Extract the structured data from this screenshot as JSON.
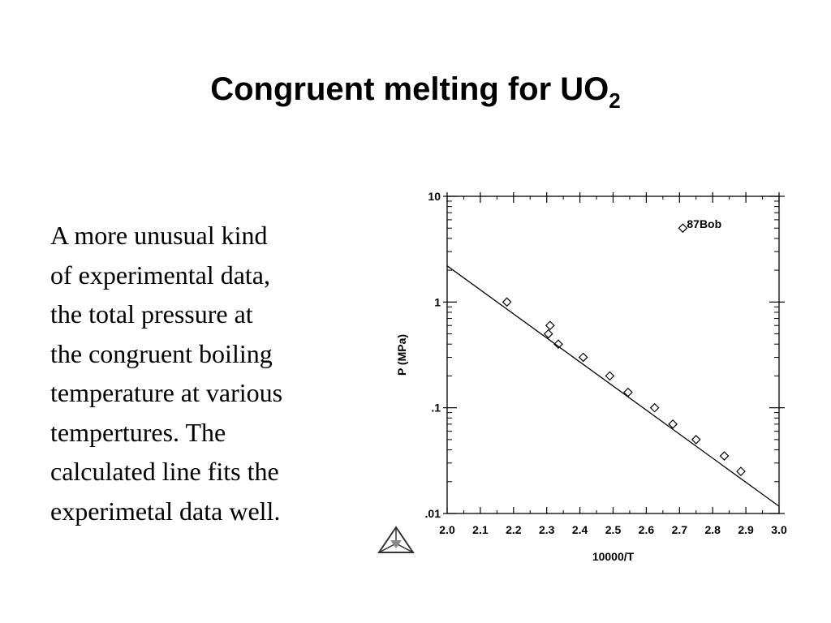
{
  "slide": {
    "title_main": "Congruent melting for UO",
    "title_subscript": "2",
    "body_lines": [
      "A more unusual kind",
      "of experimental data,",
      "the total pressure at",
      "the congruent boiling",
      "temperature at various",
      "tempertures.  The",
      "calculated line fits the",
      "experimetal data well."
    ]
  },
  "logo": {
    "icon": "thermo-calc-triangle-logo"
  },
  "chart_data": {
    "type": "scatter",
    "xlabel": "10000/T",
    "ylabel": "P (MPa)",
    "xlim": [
      2.0,
      3.0
    ],
    "ylim": [
      0.01,
      10
    ],
    "yscale": "log",
    "x_ticks": [
      2.0,
      2.1,
      2.2,
      2.3,
      2.4,
      2.5,
      2.6,
      2.7,
      2.8,
      2.9,
      3.0
    ],
    "x_tick_labels": [
      "2.0",
      "2.1",
      "2.2",
      "2.3",
      "2.4",
      "2.5",
      "2.6",
      "2.7",
      "2.8",
      "2.9",
      "3.0"
    ],
    "y_ticks": [
      0.01,
      0.1,
      1,
      10
    ],
    "y_tick_labels": [
      ".01",
      ".1",
      "1",
      "10"
    ],
    "grid": false,
    "legend": {
      "label": "87Bob",
      "marker": "diamond",
      "position": "top-right"
    },
    "series": [
      {
        "name": "87Bob",
        "kind": "points",
        "marker": "diamond",
        "points": [
          [
            2.18,
            1.0
          ],
          [
            2.31,
            0.6
          ],
          [
            2.305,
            0.5
          ],
          [
            2.335,
            0.4
          ],
          [
            2.41,
            0.3
          ],
          [
            2.49,
            0.2
          ],
          [
            2.545,
            0.14
          ],
          [
            2.625,
            0.1
          ],
          [
            2.68,
            0.07
          ],
          [
            2.75,
            0.05
          ],
          [
            2.835,
            0.035
          ],
          [
            2.885,
            0.025
          ]
        ]
      },
      {
        "kind": "line",
        "points": [
          [
            2.0,
            2.2
          ],
          [
            3.0,
            0.0117
          ]
        ]
      }
    ]
  }
}
